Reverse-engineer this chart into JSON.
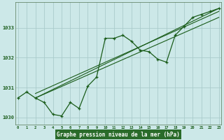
{
  "title": "Graphe pression niveau de la mer (hPa)",
  "x_hours": [
    0,
    1,
    2,
    3,
    4,
    5,
    6,
    7,
    8,
    9,
    10,
    11,
    12,
    13,
    14,
    15,
    16,
    17,
    18,
    19,
    20,
    21,
    22,
    23
  ],
  "pressure_main": [
    1030.65,
    1030.85,
    1030.65,
    1030.5,
    1030.1,
    1030.05,
    1030.5,
    1030.3,
    1031.05,
    1031.35,
    1032.65,
    1032.65,
    1032.75,
    1032.55,
    1032.25,
    1032.2,
    1031.95,
    1031.85,
    1032.75,
    1033.05,
    1033.35,
    1033.45,
    1033.55,
    1033.65
  ],
  "trend_line1": [
    [
      2,
      1030.65
    ],
    [
      23,
      1033.65
    ]
  ],
  "trend_line2": [
    [
      2,
      1030.65
    ],
    [
      23,
      1033.35
    ]
  ],
  "trend_line3": [
    [
      2,
      1030.8
    ],
    [
      23,
      1033.55
    ]
  ],
  "bg_color": "#cce8e8",
  "xlabel_bg_color": "#2a6b2a",
  "grid_color": "#aacccc",
  "line_color": "#1a5c1a",
  "axis_label_color": "#1a5c1a",
  "tick_label_color": "#1a5c1a",
  "xlabel_text_color": "#ffffff",
  "ylim": [
    1029.75,
    1033.85
  ],
  "xlim": [
    -0.3,
    23.3
  ],
  "yticks": [
    1030,
    1031,
    1032,
    1033
  ],
  "xticks": [
    0,
    1,
    2,
    3,
    4,
    5,
    6,
    7,
    8,
    9,
    10,
    11,
    12,
    13,
    14,
    15,
    16,
    17,
    18,
    19,
    20,
    21,
    22,
    23
  ]
}
